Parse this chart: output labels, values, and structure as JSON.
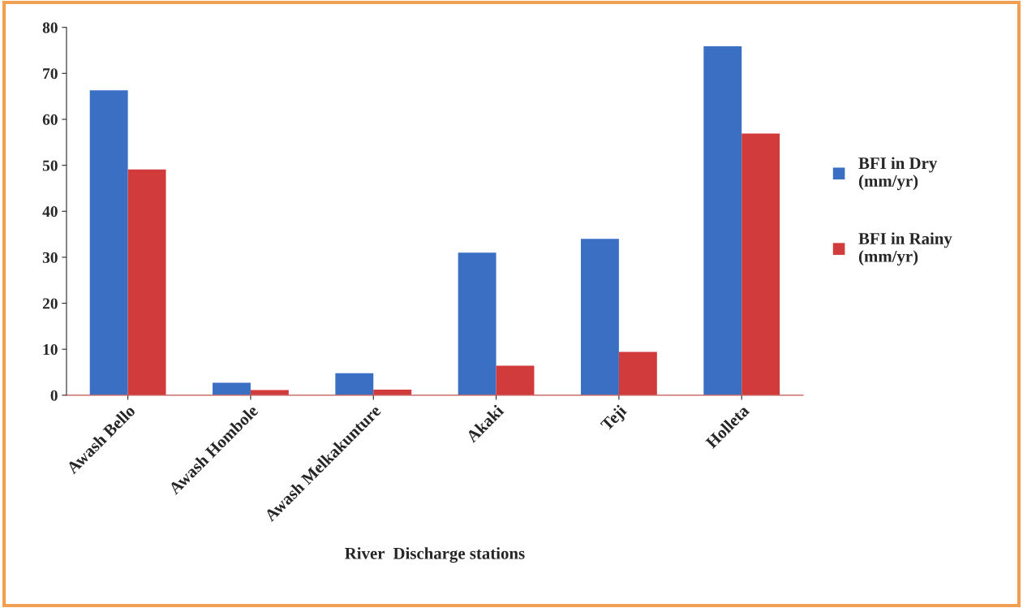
{
  "chart_data": {
    "type": "bar",
    "xlabel": "River  Discharge stations",
    "categories": [
      "Awash Bello",
      "Awash Hombole",
      "Awash Melkakunture",
      "Akaki",
      "Teji",
      "Holleta"
    ],
    "series": [
      {
        "name": "BFI in Dry\n(mm/yr)",
        "color": "#3b6fc4",
        "values": [
          66.3,
          2.7,
          4.8,
          31.0,
          34.0,
          75.9
        ]
      },
      {
        "name": "BFI in Rainy\n(mm/yr)",
        "color": "#d23b3b",
        "values": [
          49.1,
          1.1,
          1.2,
          6.4,
          9.4,
          56.9
        ]
      }
    ],
    "ylim": [
      0,
      80
    ],
    "yticks": [
      0,
      10,
      20,
      30,
      40,
      50,
      60,
      70,
      80
    ],
    "grid": false,
    "legend": "right"
  }
}
